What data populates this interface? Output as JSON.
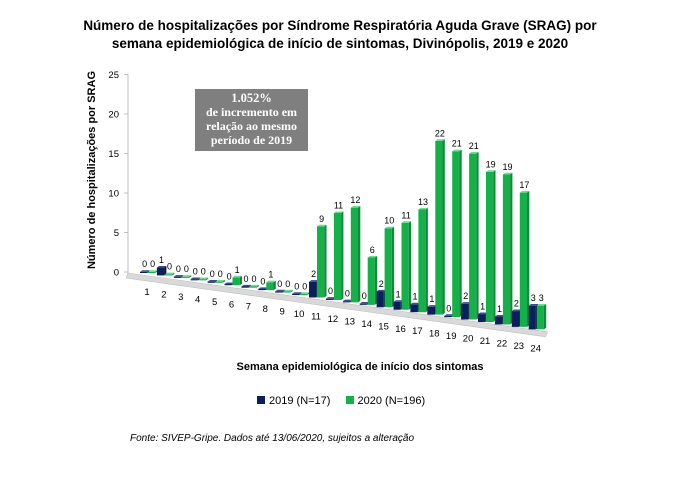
{
  "chart_data": {
    "type": "bar",
    "title_line1": "Número de hospitalizações por Síndrome Respiratória Aguda Grave (SRAG) por",
    "title_line2": "semana epidemiológica de início de sintomas, Divinópolis, 2019 e 2020",
    "ylabel": "Número de hospitalizações por SRAG",
    "xlabel": "Semana epidemiológica de início dos sintomas",
    "ylim": [
      0,
      25
    ],
    "yticks": [
      0,
      5,
      10,
      15,
      20,
      25
    ],
    "categories": [
      "1",
      "2",
      "3",
      "4",
      "5",
      "6",
      "7",
      "8",
      "9",
      "10",
      "11",
      "12",
      "13",
      "14",
      "15",
      "16",
      "17",
      "18",
      "19",
      "20",
      "21",
      "22",
      "23",
      "24"
    ],
    "series": [
      {
        "name": "2019 (N=17)",
        "color": "#0a1f5c",
        "values": [
          0,
          1,
          0,
          0,
          0,
          0,
          0,
          0,
          0,
          0,
          2,
          0,
          0,
          0,
          2,
          1,
          1,
          1,
          0,
          2,
          1,
          1,
          2,
          3
        ]
      },
      {
        "name": "2020 (N=196)",
        "color": "#16b04a",
        "values": [
          0,
          0,
          0,
          0,
          0,
          1,
          0,
          1,
          0,
          0,
          9,
          11,
          12,
          6,
          10,
          11,
          13,
          22,
          21,
          21,
          19,
          19,
          17,
          3
        ]
      }
    ],
    "grid": false,
    "legend_position": "bottom",
    "chart_style": "3d-perspective-bars"
  },
  "callout": {
    "line1": "1.052%",
    "line2": "de incremento em",
    "line3": "relação ao mesmo",
    "line4": "período de 2019"
  },
  "source_note": "Fonte: SIVEP-Gripe. Dados até 13/06/2020, sujeitos a alteração"
}
